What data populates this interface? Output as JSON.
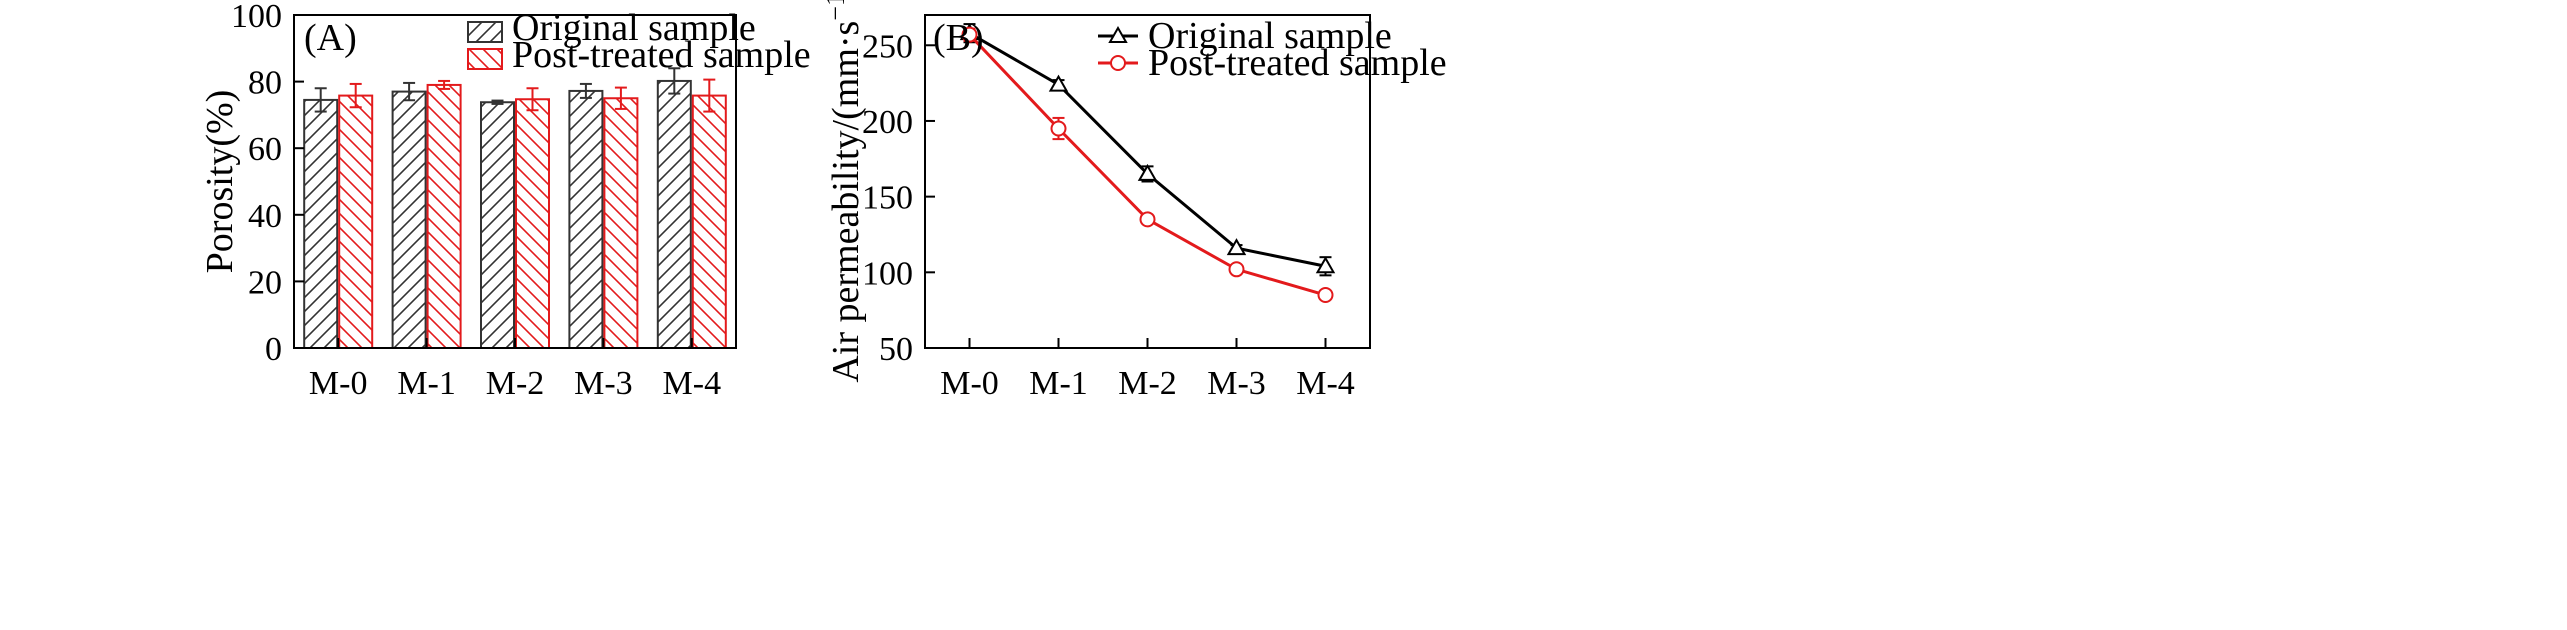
{
  "chart_data": [
    {
      "type": "bar",
      "panel_label": "(A)",
      "title": "",
      "xlabel": "",
      "ylabel": "Porosity(%)",
      "ylim": [
        0,
        100
      ],
      "yticks": [
        0,
        20,
        40,
        60,
        80,
        100
      ],
      "categories": [
        "M-0",
        "M-1",
        "M-2",
        "M-3",
        "M-4"
      ],
      "legend_position": "top-right",
      "grid": false,
      "series": [
        {
          "name": "Original sample",
          "values": [
            74.5,
            77.0,
            73.8,
            77.2,
            80.2
          ],
          "errors": [
            3.5,
            2.6,
            0.5,
            2.1,
            3.8
          ],
          "color": "#333333",
          "pattern": "diagonal-hatch-forward"
        },
        {
          "name": "Post-treated sample",
          "values": [
            75.8,
            79.0,
            74.7,
            75.0,
            75.8
          ],
          "errors": [
            3.5,
            1.2,
            3.3,
            3.2,
            4.8
          ],
          "color": "#e31a1c",
          "pattern": "diagonal-hatch-backward"
        }
      ]
    },
    {
      "type": "line",
      "panel_label": "(B)",
      "title": "",
      "xlabel": "",
      "ylabel": "Air permeability/(mm·s",
      "ylabel_sup": "−1",
      "ylabel_close": ")",
      "ylim": [
        50,
        270
      ],
      "yticks": [
        50,
        100,
        150,
        200,
        250
      ],
      "categories": [
        "M-0",
        "M-1",
        "M-2",
        "M-3",
        "M-4"
      ],
      "legend_position": "top-right",
      "grid": false,
      "series": [
        {
          "name": "Original sample",
          "values": [
            258,
            224,
            165,
            116,
            104
          ],
          "errors": [
            6,
            3,
            5,
            2,
            6
          ],
          "color": "#000000",
          "marker": "triangle-open"
        },
        {
          "name": "Post-treated sample",
          "values": [
            257,
            195,
            135,
            102,
            85
          ],
          "errors": [
            4,
            7,
            2,
            1,
            2
          ],
          "color": "#e31a1c",
          "marker": "circle-open"
        }
      ]
    }
  ]
}
